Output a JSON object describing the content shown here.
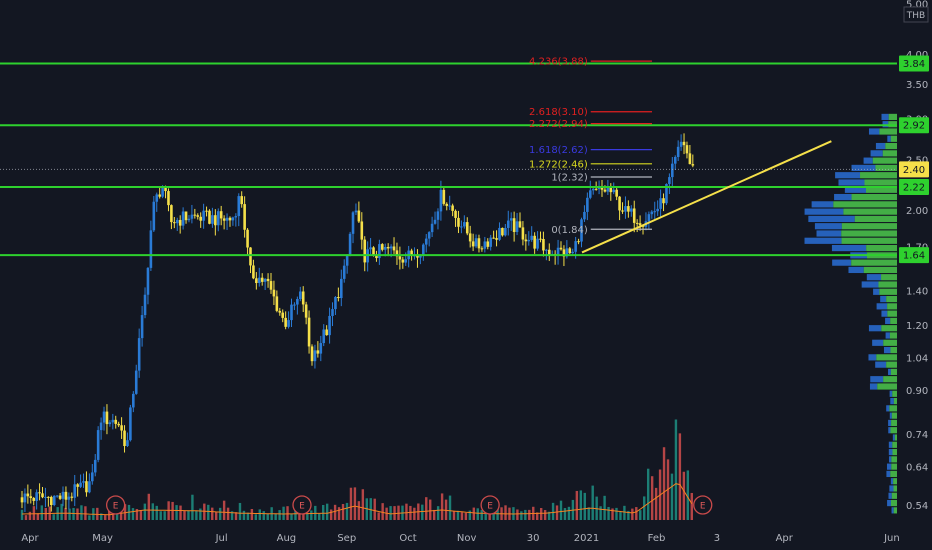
{
  "currency": "THB",
  "colors": {
    "background": "#131722",
    "up": "#2a7bd6",
    "down": "#f5e04a",
    "hline": "#2ed12e",
    "trendline": "#f5e04a",
    "volume_up": "#1e8a7e",
    "volume_down": "#c84a4a",
    "volume_ma": "#f58220",
    "profile_blue": "#2a6fd6",
    "profile_green": "#4cc94c",
    "earnings": "#c84a4a",
    "fib_red": "#e02020",
    "fib_blue": "#3a3ae0",
    "fib_yellow": "#d8d820",
    "fib_gray": "#b2b5be",
    "current_price_tag": "#f5e04a"
  },
  "chart_data": {
    "type": "candlestick",
    "y_scale": "log",
    "ylim": [
      0.52,
      5.0
    ],
    "y_ticks": [
      "5.00",
      "4.00",
      "3.50",
      "3.00",
      "2.50",
      "2.00",
      "1.70",
      "1.40",
      "1.20",
      "1.04",
      "0.90",
      "0.74",
      "0.64",
      "0.54"
    ],
    "x_ticks": [
      "Apr",
      "May",
      "Jul",
      "Aug",
      "Sep",
      "Oct",
      "Nov",
      "30",
      "2021",
      "Feb",
      "3",
      "Apr",
      "Jun"
    ],
    "horizontal_levels": [
      {
        "value": 3.84,
        "label": "3.84"
      },
      {
        "value": 2.92,
        "label": "2.92"
      },
      {
        "value": 2.22,
        "label": "2.22"
      },
      {
        "value": 1.64,
        "label": "1.64"
      }
    ],
    "current_price": {
      "value": 2.4,
      "label": "2.40"
    },
    "fibonacci": [
      {
        "label": "4.236(3.88)",
        "value": 3.88,
        "color": "#e02020"
      },
      {
        "label": "2.618(3.10)",
        "value": 3.1,
        "color": "#e02020"
      },
      {
        "label": "2.272(2.94)",
        "value": 2.94,
        "color": "#e02020"
      },
      {
        "label": "1.618(2.62)",
        "value": 2.62,
        "color": "#3a3ae0"
      },
      {
        "label": "1.272(2.46)",
        "value": 2.46,
        "color": "#d8d820"
      },
      {
        "label": "1(2.32)",
        "value": 2.32,
        "color": "#b2b5be"
      },
      {
        "label": "0(1.84)",
        "value": 1.84,
        "color": "#b2b5be"
      }
    ],
    "trendline": {
      "from": [
        0.64,
        1.66
      ],
      "to": [
        0.925,
        2.72
      ]
    },
    "earnings_markers": [
      "E",
      "E",
      "E",
      "E"
    ],
    "price_path": [
      [
        0.0,
        0.56
      ],
      [
        0.05,
        0.56
      ],
      [
        0.08,
        0.6
      ],
      [
        0.09,
        0.8
      ],
      [
        0.11,
        0.78
      ],
      [
        0.12,
        0.7
      ],
      [
        0.13,
        0.98
      ],
      [
        0.14,
        1.32
      ],
      [
        0.15,
        2.02
      ],
      [
        0.16,
        2.25
      ],
      [
        0.17,
        1.9
      ],
      [
        0.19,
        1.95
      ],
      [
        0.22,
        1.93
      ],
      [
        0.24,
        1.92
      ],
      [
        0.25,
        2.15
      ],
      [
        0.26,
        1.52
      ],
      [
        0.28,
        1.45
      ],
      [
        0.3,
        1.21
      ],
      [
        0.32,
        1.38
      ],
      [
        0.33,
        1.03
      ],
      [
        0.35,
        1.19
      ],
      [
        0.37,
        1.55
      ],
      [
        0.38,
        2.05
      ],
      [
        0.39,
        1.64
      ],
      [
        0.42,
        1.68
      ],
      [
        0.44,
        1.62
      ],
      [
        0.46,
        1.72
      ],
      [
        0.48,
        2.15
      ],
      [
        0.5,
        1.9
      ],
      [
        0.52,
        1.7
      ],
      [
        0.56,
        1.88
      ],
      [
        0.58,
        1.76
      ],
      [
        0.6,
        1.68
      ],
      [
        0.63,
        1.65
      ],
      [
        0.65,
        2.15
      ],
      [
        0.67,
        2.2
      ],
      [
        0.69,
        1.98
      ],
      [
        0.71,
        1.92
      ],
      [
        0.73,
        2.05
      ],
      [
        0.74,
        2.28
      ],
      [
        0.755,
        2.75
      ],
      [
        0.765,
        2.4
      ]
    ],
    "volume_path": [
      [
        0.0,
        0.1
      ],
      [
        0.05,
        0.12
      ],
      [
        0.1,
        0.08
      ],
      [
        0.14,
        0.2
      ],
      [
        0.2,
        0.18
      ],
      [
        0.25,
        0.12
      ],
      [
        0.3,
        0.1
      ],
      [
        0.35,
        0.12
      ],
      [
        0.38,
        0.3
      ],
      [
        0.42,
        0.1
      ],
      [
        0.48,
        0.2
      ],
      [
        0.52,
        0.12
      ],
      [
        0.56,
        0.1
      ],
      [
        0.6,
        0.12
      ],
      [
        0.65,
        0.25
      ],
      [
        0.7,
        0.12
      ],
      [
        0.75,
        0.9
      ],
      [
        0.77,
        0.2
      ]
    ]
  }
}
